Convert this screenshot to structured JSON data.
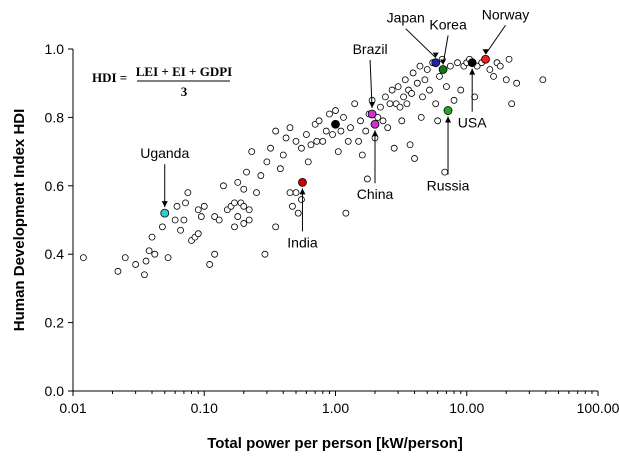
{
  "chart_data": {
    "type": "scatter",
    "xlabel": "Total power per person [kW/person]",
    "ylabel": "Human Development Index HDI",
    "x_scale": "log",
    "xlim": [
      0.01,
      100
    ],
    "ylim": [
      0.0,
      1.0
    ],
    "x_ticks": [
      "0.01",
      "0.10",
      "1.00",
      "10.00",
      "100.00"
    ],
    "y_ticks": [
      "0.0",
      "0.2",
      "0.4",
      "0.6",
      "0.8",
      "1.0"
    ],
    "grid": false,
    "formula": {
      "lhs": "HDI =",
      "numerator": "LEI + EI + GDPI",
      "denominator": "3"
    },
    "highlighted": [
      {
        "label": "Uganda",
        "x": 0.05,
        "y": 0.52,
        "color": "#33cccc"
      },
      {
        "label": "India",
        "x": 0.56,
        "y": 0.61,
        "color": "#cc0000"
      },
      {
        "label": "China",
        "x": 2.0,
        "y": 0.78,
        "color": "#cc33cc"
      },
      {
        "label": "Brazil",
        "x": 1.9,
        "y": 0.81,
        "color": "#cc33cc"
      },
      {
        "label": "Russia",
        "x": 7.2,
        "y": 0.82,
        "color": "#22aa22"
      },
      {
        "label": "Japan",
        "x": 5.8,
        "y": 0.96,
        "color": "#2222aa"
      },
      {
        "label": "Korea",
        "x": 6.6,
        "y": 0.94,
        "color": "#117711"
      },
      {
        "label": "USA",
        "x": 11.0,
        "y": 0.96,
        "color": "#000000"
      },
      {
        "label": "Norway",
        "x": 13.9,
        "y": 0.97,
        "color": "#ee2222"
      },
      {
        "label": "",
        "x": 1.0,
        "y": 0.78,
        "color": "#000000"
      }
    ],
    "points": [
      [
        0.012,
        0.39
      ],
      [
        0.022,
        0.35
      ],
      [
        0.025,
        0.39
      ],
      [
        0.03,
        0.37
      ],
      [
        0.035,
        0.34
      ],
      [
        0.036,
        0.38
      ],
      [
        0.038,
        0.41
      ],
      [
        0.04,
        0.45
      ],
      [
        0.042,
        0.4
      ],
      [
        0.048,
        0.48
      ],
      [
        0.053,
        0.39
      ],
      [
        0.06,
        0.5
      ],
      [
        0.062,
        0.54
      ],
      [
        0.066,
        0.47
      ],
      [
        0.07,
        0.5
      ],
      [
        0.072,
        0.55
      ],
      [
        0.075,
        0.58
      ],
      [
        0.08,
        0.44
      ],
      [
        0.085,
        0.45
      ],
      [
        0.09,
        0.46
      ],
      [
        0.09,
        0.53
      ],
      [
        0.095,
        0.51
      ],
      [
        0.1,
        0.54
      ],
      [
        0.11,
        0.37
      ],
      [
        0.12,
        0.4
      ],
      [
        0.12,
        0.51
      ],
      [
        0.13,
        0.5
      ],
      [
        0.14,
        0.6
      ],
      [
        0.15,
        0.53
      ],
      [
        0.16,
        0.54
      ],
      [
        0.17,
        0.55
      ],
      [
        0.17,
        0.48
      ],
      [
        0.18,
        0.51
      ],
      [
        0.18,
        0.61
      ],
      [
        0.19,
        0.55
      ],
      [
        0.2,
        0.54
      ],
      [
        0.2,
        0.59
      ],
      [
        0.2,
        0.49
      ],
      [
        0.21,
        0.64
      ],
      [
        0.22,
        0.53
      ],
      [
        0.22,
        0.5
      ],
      [
        0.23,
        0.7
      ],
      [
        0.25,
        0.58
      ],
      [
        0.27,
        0.63
      ],
      [
        0.29,
        0.4
      ],
      [
        0.3,
        0.67
      ],
      [
        0.32,
        0.71
      ],
      [
        0.35,
        0.76
      ],
      [
        0.35,
        0.48
      ],
      [
        0.38,
        0.65
      ],
      [
        0.4,
        0.69
      ],
      [
        0.42,
        0.74
      ],
      [
        0.45,
        0.77
      ],
      [
        0.45,
        0.58
      ],
      [
        0.47,
        0.54
      ],
      [
        0.5,
        0.58
      ],
      [
        0.5,
        0.73
      ],
      [
        0.52,
        0.52
      ],
      [
        0.55,
        0.56
      ],
      [
        0.55,
        0.71
      ],
      [
        0.6,
        0.75
      ],
      [
        0.62,
        0.67
      ],
      [
        0.65,
        0.72
      ],
      [
        0.7,
        0.78
      ],
      [
        0.72,
        0.73
      ],
      [
        0.75,
        0.79
      ],
      [
        0.8,
        0.73
      ],
      [
        0.85,
        0.76
      ],
      [
        0.9,
        0.81
      ],
      [
        0.95,
        0.75
      ],
      [
        1.0,
        0.82
      ],
      [
        1.05,
        0.7
      ],
      [
        1.1,
        0.76
      ],
      [
        1.15,
        0.8
      ],
      [
        1.2,
        0.52
      ],
      [
        1.25,
        0.73
      ],
      [
        1.3,
        0.77
      ],
      [
        1.4,
        0.84
      ],
      [
        1.5,
        0.73
      ],
      [
        1.55,
        0.79
      ],
      [
        1.6,
        0.69
      ],
      [
        1.7,
        0.76
      ],
      [
        1.75,
        0.62
      ],
      [
        1.8,
        0.81
      ],
      [
        1.9,
        0.85
      ],
      [
        2.0,
        0.74
      ],
      [
        2.1,
        0.8
      ],
      [
        2.2,
        0.83
      ],
      [
        2.3,
        0.79
      ],
      [
        2.4,
        0.86
      ],
      [
        2.5,
        0.77
      ],
      [
        2.6,
        0.84
      ],
      [
        2.7,
        0.88
      ],
      [
        2.8,
        0.71
      ],
      [
        2.9,
        0.84
      ],
      [
        3.0,
        0.89
      ],
      [
        3.1,
        0.83
      ],
      [
        3.2,
        0.79
      ],
      [
        3.3,
        0.86
      ],
      [
        3.4,
        0.91
      ],
      [
        3.5,
        0.84
      ],
      [
        3.6,
        0.88
      ],
      [
        3.7,
        0.72
      ],
      [
        3.8,
        0.87
      ],
      [
        3.9,
        0.93
      ],
      [
        4.0,
        0.68
      ],
      [
        4.2,
        0.9
      ],
      [
        4.4,
        0.95
      ],
      [
        4.5,
        0.8
      ],
      [
        4.6,
        0.86
      ],
      [
        4.8,
        0.91
      ],
      [
        5.0,
        0.94
      ],
      [
        5.2,
        0.88
      ],
      [
        5.5,
        0.96
      ],
      [
        5.8,
        0.84
      ],
      [
        6.0,
        0.79
      ],
      [
        6.2,
        0.92
      ],
      [
        6.5,
        0.97
      ],
      [
        6.8,
        0.64
      ],
      [
        7.0,
        0.89
      ],
      [
        7.5,
        0.95
      ],
      [
        8.0,
        0.85
      ],
      [
        8.5,
        0.96
      ],
      [
        9.0,
        0.88
      ],
      [
        9.5,
        0.95
      ],
      [
        10.0,
        0.96
      ],
      [
        10.5,
        0.97
      ],
      [
        11.5,
        0.86
      ],
      [
        12.0,
        0.95
      ],
      [
        13.0,
        0.96
      ],
      [
        14.0,
        0.97
      ],
      [
        15.0,
        0.94
      ],
      [
        16.0,
        0.92
      ],
      [
        17.0,
        0.96
      ],
      [
        18.0,
        0.95
      ],
      [
        20.0,
        0.91
      ],
      [
        21.0,
        0.97
      ],
      [
        22.0,
        0.84
      ],
      [
        24.0,
        0.9
      ],
      [
        38.0,
        0.91
      ]
    ]
  }
}
